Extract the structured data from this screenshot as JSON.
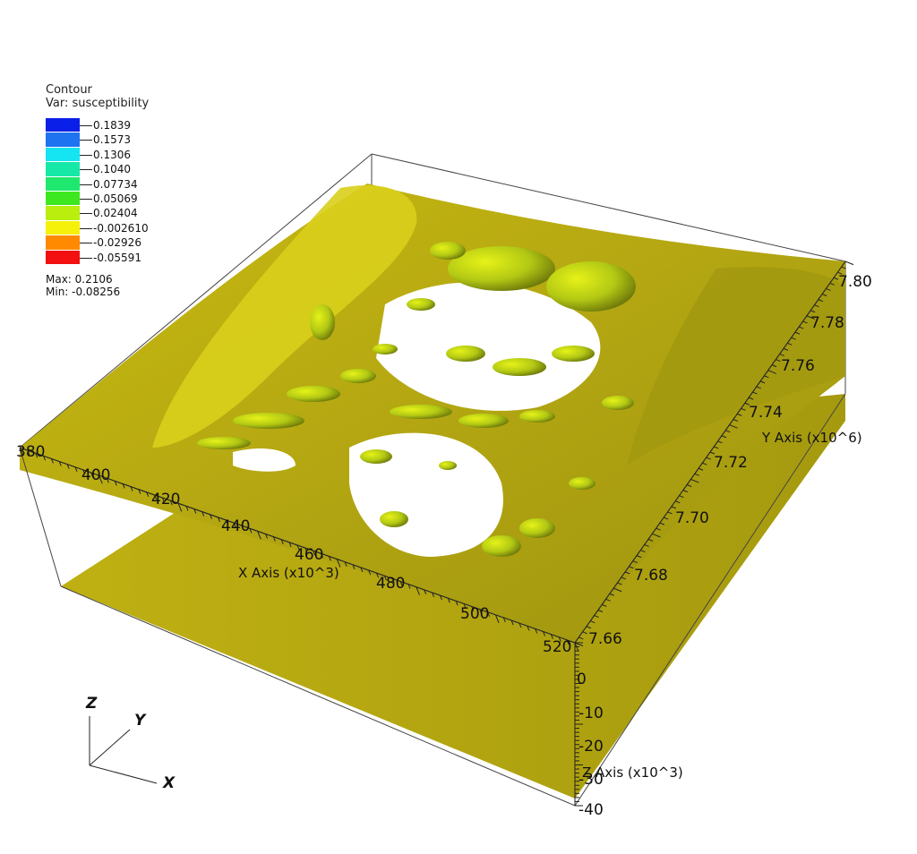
{
  "legend": {
    "title": "Contour",
    "variable": "Var: susceptibility",
    "levels": [
      {
        "value": "0.1839",
        "color": "#0a1fe8"
      },
      {
        "value": "0.1573",
        "color": "#1e73f0"
      },
      {
        "value": "0.1306",
        "color": "#15e4f2"
      },
      {
        "value": "0.1040",
        "color": "#16e8a8"
      },
      {
        "value": "0.07734",
        "color": "#1ee86e"
      },
      {
        "value": "0.05069",
        "color": "#3ee820"
      },
      {
        "value": "0.02404",
        "color": "#b9ee0e"
      },
      {
        "value": "-0.002610",
        "color": "#f5f10a"
      },
      {
        "value": "-0.02926",
        "color": "#ff8a00"
      },
      {
        "value": "-0.05591",
        "color": "#f21010"
      }
    ],
    "max": "Max:  0.2106",
    "min": "Min: -0.08256"
  },
  "axes": {
    "x_title": "X Axis (x10^3)",
    "y_title": "Y Axis (x10^6)",
    "z_title": "Z Axis (x10^3)",
    "x_ticks": [
      "380",
      "400",
      "420",
      "440",
      "460",
      "480",
      "500",
      "520"
    ],
    "y_ticks": [
      "7.66",
      "7.68",
      "7.70",
      "7.72",
      "7.74",
      "7.76",
      "7.78",
      "7.80"
    ],
    "z_ticks": [
      "0",
      "-10",
      "-20",
      "-30",
      "-40"
    ]
  },
  "triad": {
    "x": "X",
    "y": "Y",
    "z": "Z"
  },
  "surface_color": "#b3a612"
}
